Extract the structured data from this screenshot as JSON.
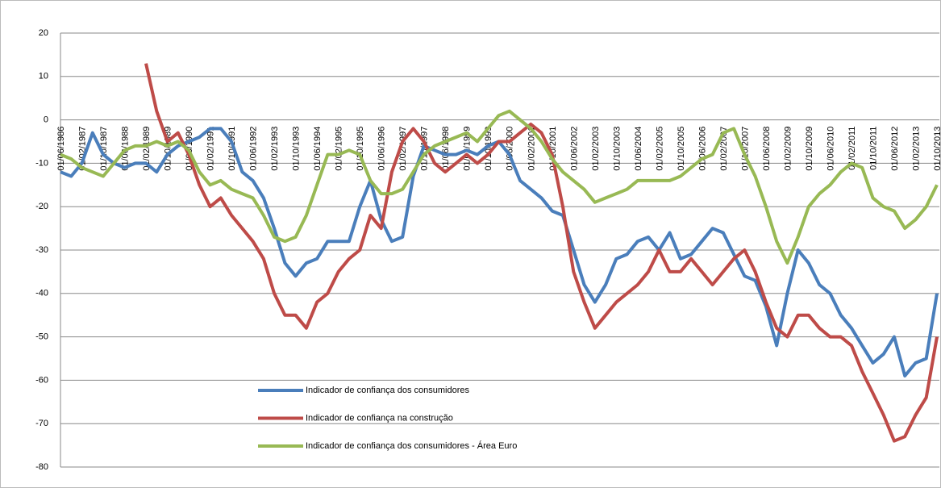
{
  "chart_data": {
    "type": "line",
    "categories": [
      "01/06/1986",
      null,
      "01/02/1987",
      null,
      "01/10/1987",
      null,
      "01/06/1988",
      null,
      "01/02/1989",
      null,
      "01/10/1989",
      null,
      "01/06/1990",
      null,
      "01/02/1991",
      null,
      "01/10/1991",
      null,
      "01/06/1992",
      null,
      "01/02/1993",
      null,
      "01/10/1993",
      null,
      "01/06/1994",
      null,
      "01/02/1995",
      null,
      "01/10/1995",
      null,
      "01/06/1996",
      null,
      "01/02/1997",
      null,
      "01/10/1997",
      null,
      "01/06/1998",
      null,
      "01/02/1999",
      null,
      "01/10/1999",
      null,
      "01/06/2000",
      null,
      "01/02/2001",
      null,
      "01/10/2001",
      null,
      "01/06/2002",
      null,
      "01/02/2003",
      null,
      "01/10/2003",
      null,
      "01/06/2004",
      null,
      "01/02/2005",
      null,
      "01/10/2005",
      null,
      "01/06/2006",
      null,
      "01/02/2007",
      null,
      "01/10/2007",
      null,
      "01/06/2008",
      null,
      "01/02/2009",
      null,
      "01/10/2009",
      null,
      "01/06/2010",
      null,
      "01/02/2011",
      null,
      "01/10/2011",
      null,
      "01/06/2012",
      null,
      "01/02/2013",
      null,
      "01/10/2013"
    ],
    "series": [
      {
        "name": "Indicador de confiança dos consumidores",
        "color": "#4a7ebb",
        "values": [
          -12,
          -13,
          -10,
          -3,
          -8,
          -10,
          -11,
          -10,
          -10,
          -12,
          -8,
          -6,
          -5,
          -4,
          -2,
          -2,
          -5,
          -12,
          -14,
          -18,
          -25,
          -33,
          -36,
          -33,
          -32,
          -28,
          -28,
          -28,
          -20,
          -14,
          -23,
          -28,
          -27,
          -13,
          -6,
          -7,
          -8,
          -8,
          -7,
          -8,
          -6,
          -5,
          -8,
          -14,
          -16,
          -18,
          -21,
          -22,
          -30,
          -38,
          -42,
          -38,
          -32,
          -31,
          -28,
          -27,
          -30,
          -26,
          -32,
          -31,
          -28,
          -25,
          -26,
          -31,
          -36,
          -37,
          -43,
          -52,
          -40,
          -30,
          -33,
          -38,
          -40,
          -45,
          -48,
          -52,
          -56,
          -54,
          -50,
          -59,
          -56,
          -55,
          -40
        ]
      },
      {
        "name": "Indicador de confiança na construção",
        "color": "#be4b48",
        "values": [
          null,
          null,
          null,
          null,
          null,
          null,
          null,
          null,
          13,
          2,
          -5,
          -3,
          -8,
          -15,
          -20,
          -18,
          -22,
          -25,
          -28,
          -32,
          -40,
          -45,
          -45,
          -48,
          -42,
          -40,
          -35,
          -32,
          -30,
          -22,
          -25,
          -12,
          -5,
          -2,
          -5,
          -10,
          -12,
          -10,
          -8,
          -10,
          -8,
          -5,
          -5,
          -3,
          -1,
          -3,
          -8,
          -20,
          -35,
          -42,
          -48,
          -45,
          -42,
          -40,
          -38,
          -35,
          -30,
          -35,
          -35,
          -32,
          -35,
          -38,
          -35,
          -32,
          -30,
          -35,
          -42,
          -48,
          -50,
          -45,
          -45,
          -48,
          -50,
          -50,
          -52,
          -58,
          -63,
          -68,
          -74,
          -73,
          -68,
          -64,
          -50
        ]
      },
      {
        "name": "Indicador de confiança dos consumidores - Área Euro",
        "color": "#98b954",
        "values": [
          -8,
          -9,
          -11,
          -12,
          -13,
          -10,
          -7,
          -6,
          -6,
          -5,
          -6,
          -5,
          -7,
          -12,
          -15,
          -14,
          -16,
          -17,
          -18,
          -22,
          -27,
          -28,
          -27,
          -22,
          -15,
          -8,
          -8,
          -7,
          -8,
          -14,
          -17,
          -17,
          -16,
          -12,
          -8,
          -6,
          -5,
          -4,
          -3,
          -5,
          -2,
          1,
          2,
          0,
          -2,
          -5,
          -9,
          -12,
          -14,
          -16,
          -19,
          -18,
          -17,
          -16,
          -14,
          -14,
          -14,
          -14,
          -13,
          -11,
          -9,
          -8,
          -3,
          -2,
          -8,
          -13,
          -20,
          -28,
          -33,
          -27,
          -20,
          -17,
          -15,
          -12,
          -10,
          -11,
          -18,
          -20,
          -21,
          -25,
          -23,
          -20,
          -15
        ]
      }
    ],
    "ylim": [
      -80,
      20
    ],
    "yticks": [
      -80,
      -70,
      -60,
      -50,
      -40,
      -30,
      -20,
      -10,
      0,
      10,
      20
    ],
    "grid": true
  }
}
